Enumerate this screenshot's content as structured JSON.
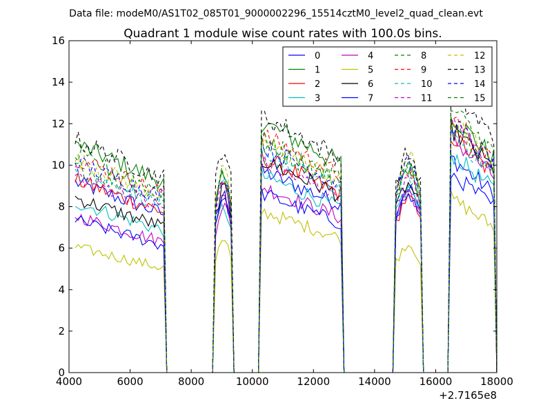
{
  "suptitle": "Data file: modeM0/AS1T02_085T01_9000002296_15514cztM0_level2_quad_clean.evt",
  "chart_data": {
    "type": "line",
    "title": "Quadrant 1 module wise count rates with 100.0s bins.",
    "xlabel": "",
    "ylabel": "",
    "x_offset_label": "+2.7165e8",
    "xlim": [
      4000,
      18000
    ],
    "ylim": [
      0,
      16
    ],
    "xticks": [
      "4000",
      "6000",
      "8000",
      "10000",
      "12000",
      "14000",
      "16000",
      "18000"
    ],
    "yticks": [
      "0",
      "2",
      "4",
      "6",
      "8",
      "10",
      "12",
      "14",
      "16"
    ],
    "grid": false,
    "legend_position": "top-right",
    "legend_columns": 4,
    "segments": [
      {
        "start": 4200,
        "end": 7100
      },
      {
        "start": 8800,
        "end": 9300
      },
      {
        "start": 10300,
        "end": 12900
      },
      {
        "start": 14700,
        "end": 15500
      },
      {
        "start": 16500,
        "end": 17900
      }
    ],
    "series": [
      {
        "name": "0",
        "color": "#0000ff",
        "style": "solid",
        "levels": [
          8.5,
          8.2,
          9.0,
          8.5,
          9.6
        ]
      },
      {
        "name": "1",
        "color": "#008000",
        "style": "solid",
        "levels": [
          10.2,
          8.9,
          11.2,
          9.4,
          11.5
        ]
      },
      {
        "name": "2",
        "color": "#ff0000",
        "style": "solid",
        "levels": [
          8.6,
          7.9,
          9.6,
          8.0,
          10.6
        ]
      },
      {
        "name": "3",
        "color": "#00bfbf",
        "style": "solid",
        "levels": [
          7.6,
          7.6,
          8.8,
          8.4,
          9.8
        ]
      },
      {
        "name": "4",
        "color": "#bf00bf",
        "style": "solid",
        "levels": [
          7.0,
          7.7,
          8.3,
          8.3,
          10.5
        ]
      },
      {
        "name": "5",
        "color": "#bfbf00",
        "style": "solid",
        "levels": [
          5.6,
          6.0,
          7.2,
          5.9,
          7.8
        ]
      },
      {
        "name": "6",
        "color": "#000000",
        "style": "solid",
        "levels": [
          7.8,
          8.4,
          9.5,
          8.6,
          10.9
        ]
      },
      {
        "name": "7",
        "color": "#0000ff",
        "style": "solid",
        "levels": [
          6.8,
          8.1,
          8.0,
          8.1,
          8.9
        ]
      },
      {
        "name": "8",
        "color": "#008000",
        "style": "dashed",
        "levels": [
          9.2,
          9.0,
          10.2,
          9.6,
          11.0
        ]
      },
      {
        "name": "9",
        "color": "#ff0000",
        "style": "dashed",
        "levels": [
          9.6,
          9.0,
          10.6,
          9.2,
          11.4
        ]
      },
      {
        "name": "10",
        "color": "#00bfbf",
        "style": "dashed",
        "levels": [
          9.0,
          8.7,
          9.8,
          9.0,
          10.7
        ]
      },
      {
        "name": "11",
        "color": "#bf00bf",
        "style": "dashed",
        "levels": [
          8.8,
          8.6,
          9.4,
          8.8,
          11.1
        ]
      },
      {
        "name": "12",
        "color": "#bfbf00",
        "style": "dashed",
        "levels": [
          9.5,
          9.2,
          10.3,
          9.9,
          11.3
        ]
      },
      {
        "name": "13",
        "color": "#000000",
        "style": "dashed",
        "levels": [
          10.4,
          10.3,
          11.5,
          10.0,
          12.6
        ]
      },
      {
        "name": "14",
        "color": "#0000ff",
        "style": "dashed",
        "levels": [
          9.4,
          9.0,
          10.1,
          9.6,
          11.2
        ]
      },
      {
        "name": "15",
        "color": "#008000",
        "style": "dashed",
        "levels": [
          9.7,
          9.1,
          10.4,
          9.5,
          11.8
        ]
      }
    ]
  }
}
